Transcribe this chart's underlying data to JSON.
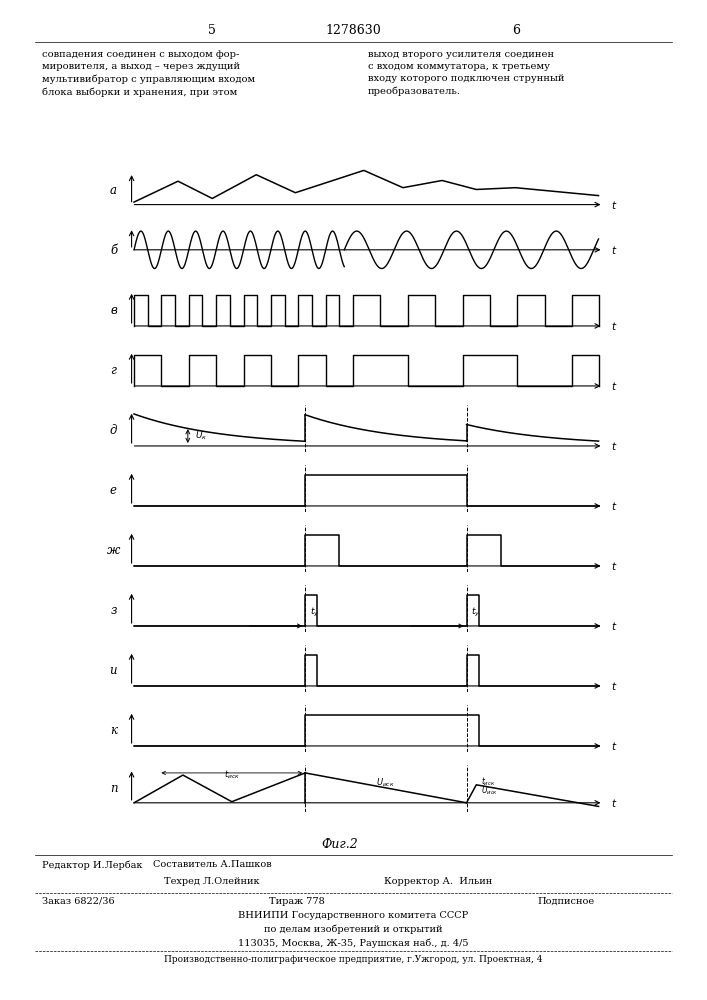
{
  "title": "Фиг.2",
  "background_color": "#ffffff",
  "line_color": "#000000",
  "fig_width": 7.07,
  "fig_height": 10.0,
  "labels": [
    "а",
    "б",
    "в",
    "г",
    "д",
    "е",
    "ж",
    "з",
    "и",
    "к",
    "п"
  ],
  "t_label": "t",
  "page_number_left": "5",
  "page_number_right": "6",
  "patent_number": "1278630",
  "top_text_left": "совпадения соединен с выходом фор-\nмировителя, а выход – через ждущий\nмультивибратор с управляющим входом\nблока выборки и хранения, при этом",
  "top_text_right": "выход второго усилителя соединен\nс входом коммутатора, к третьему\nвходу которого подключен струнный\nпреобразователь.",
  "bottom_text_line1": "Редактор И.Лербак",
  "bottom_text_line2": "Составитель А.Пашков",
  "bottom_text_line3": "Техред Л.Олейник",
  "bottom_text_line4": "Корректор А.  Ильин",
  "bottom_order": "Заказ 6822/36",
  "bottom_tirazh": "Тираж 778",
  "bottom_podp": "Подписное",
  "bottom_vniip": "ВНИИПИ Государственного комитета СССР",
  "bottom_dela": "по делам изобретений и открытий",
  "bottom_addr": "113035, Москва, Ж-35, Раушская наб., д. 4/5",
  "bottom_prod": "Производственно-полиграфическое предприятие, г.Ужгород, ул. Проектная, 4"
}
